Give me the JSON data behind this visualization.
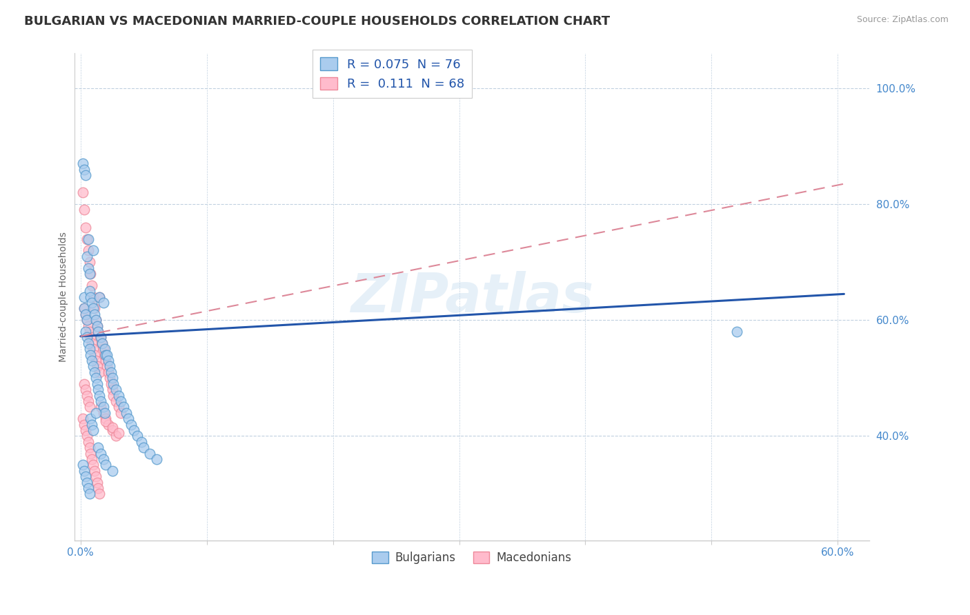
{
  "title": "BULGARIAN VS MACEDONIAN MARRIED-COUPLE HOUSEHOLDS CORRELATION CHART",
  "source": "Source: ZipAtlas.com",
  "ylabel": "Married-couple Households",
  "xlim": [
    -0.005,
    0.625
  ],
  "ylim": [
    0.22,
    1.06
  ],
  "xticks": [
    0.0,
    0.1,
    0.2,
    0.3,
    0.4,
    0.5,
    0.6
  ],
  "xtick_labels": [
    "0.0%",
    "",
    "",
    "",
    "",
    "",
    "60.0%"
  ],
  "yticks_right": [
    1.0,
    0.8,
    0.6,
    0.4
  ],
  "ytick_right_labels": [
    "100.0%",
    "80.0%",
    "60.0%",
    "40.0%"
  ],
  "watermark": "ZIPatlas",
  "bg_color": "#ffffff",
  "grid_color": "#c0d0e0",
  "blue_marker_face": "#aaccee",
  "blue_marker_edge": "#5599cc",
  "pink_marker_face": "#ffbbcc",
  "pink_marker_edge": "#ee8899",
  "blue_trend_color": "#2255aa",
  "pink_trend_color": "#dd8899",
  "legend_blue_label": "R = 0.075  N = 76",
  "legend_pink_label": "R =  0.111  N = 68",
  "blue_trend_x": [
    0.0,
    0.605
  ],
  "blue_trend_y": [
    0.572,
    0.645
  ],
  "pink_trend_x": [
    0.0,
    0.605
  ],
  "pink_trend_y": [
    0.572,
    0.835
  ],
  "bulgarians_x": [
    0.002,
    0.003,
    0.003,
    0.003,
    0.004,
    0.004,
    0.004,
    0.005,
    0.005,
    0.005,
    0.006,
    0.006,
    0.006,
    0.007,
    0.007,
    0.007,
    0.008,
    0.008,
    0.009,
    0.009,
    0.01,
    0.01,
    0.01,
    0.011,
    0.011,
    0.012,
    0.012,
    0.013,
    0.013,
    0.014,
    0.014,
    0.015,
    0.015,
    0.016,
    0.016,
    0.017,
    0.018,
    0.018,
    0.019,
    0.019,
    0.02,
    0.021,
    0.022,
    0.023,
    0.024,
    0.025,
    0.026,
    0.028,
    0.03,
    0.032,
    0.034,
    0.036,
    0.038,
    0.04,
    0.042,
    0.045,
    0.048,
    0.05,
    0.055,
    0.06,
    0.002,
    0.003,
    0.004,
    0.005,
    0.006,
    0.007,
    0.008,
    0.009,
    0.01,
    0.012,
    0.014,
    0.016,
    0.018,
    0.02,
    0.025,
    0.52
  ],
  "bulgarians_y": [
    0.87,
    0.86,
    0.64,
    0.62,
    0.85,
    0.61,
    0.58,
    0.71,
    0.6,
    0.57,
    0.74,
    0.69,
    0.56,
    0.68,
    0.65,
    0.55,
    0.64,
    0.54,
    0.63,
    0.53,
    0.72,
    0.62,
    0.52,
    0.61,
    0.51,
    0.6,
    0.5,
    0.59,
    0.49,
    0.58,
    0.48,
    0.64,
    0.47,
    0.57,
    0.46,
    0.56,
    0.63,
    0.45,
    0.55,
    0.44,
    0.54,
    0.54,
    0.53,
    0.52,
    0.51,
    0.5,
    0.49,
    0.48,
    0.47,
    0.46,
    0.45,
    0.44,
    0.43,
    0.42,
    0.41,
    0.4,
    0.39,
    0.38,
    0.37,
    0.36,
    0.35,
    0.34,
    0.33,
    0.32,
    0.31,
    0.3,
    0.43,
    0.42,
    0.41,
    0.44,
    0.38,
    0.37,
    0.36,
    0.35,
    0.34,
    0.58
  ],
  "macedonians_x": [
    0.002,
    0.003,
    0.003,
    0.004,
    0.004,
    0.005,
    0.005,
    0.006,
    0.006,
    0.007,
    0.007,
    0.008,
    0.008,
    0.009,
    0.009,
    0.01,
    0.01,
    0.011,
    0.011,
    0.012,
    0.012,
    0.013,
    0.013,
    0.014,
    0.015,
    0.015,
    0.016,
    0.017,
    0.018,
    0.019,
    0.02,
    0.021,
    0.022,
    0.023,
    0.024,
    0.025,
    0.026,
    0.028,
    0.03,
    0.032,
    0.002,
    0.003,
    0.004,
    0.005,
    0.006,
    0.007,
    0.008,
    0.009,
    0.01,
    0.011,
    0.012,
    0.013,
    0.014,
    0.015,
    0.016,
    0.018,
    0.02,
    0.022,
    0.025,
    0.028,
    0.003,
    0.004,
    0.005,
    0.006,
    0.007,
    0.02,
    0.025,
    0.03
  ],
  "macedonians_y": [
    0.82,
    0.79,
    0.62,
    0.76,
    0.61,
    0.74,
    0.6,
    0.72,
    0.59,
    0.7,
    0.58,
    0.68,
    0.57,
    0.66,
    0.56,
    0.64,
    0.55,
    0.62,
    0.54,
    0.6,
    0.53,
    0.59,
    0.52,
    0.58,
    0.64,
    0.51,
    0.57,
    0.56,
    0.55,
    0.54,
    0.53,
    0.52,
    0.51,
    0.5,
    0.49,
    0.48,
    0.47,
    0.46,
    0.45,
    0.44,
    0.43,
    0.42,
    0.41,
    0.4,
    0.39,
    0.38,
    0.37,
    0.36,
    0.35,
    0.34,
    0.33,
    0.32,
    0.31,
    0.3,
    0.45,
    0.44,
    0.43,
    0.42,
    0.41,
    0.4,
    0.49,
    0.48,
    0.47,
    0.46,
    0.45,
    0.425,
    0.415,
    0.405
  ]
}
